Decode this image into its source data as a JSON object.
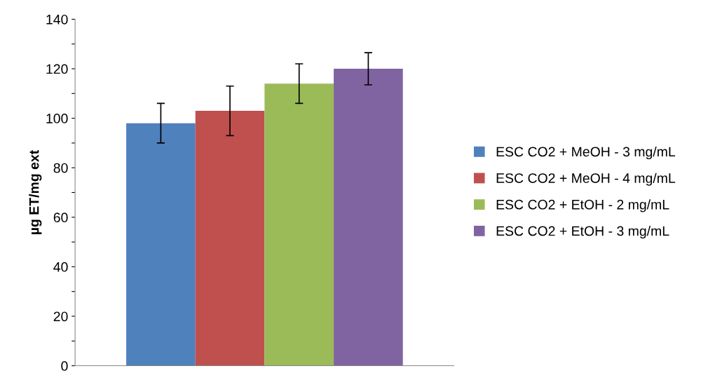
{
  "chart_data": {
    "type": "bar",
    "ylabel": "µg ET/mg ext",
    "categories": [
      null
    ],
    "series": [
      {
        "name": "ESC CO2 + MeOH - 3 mg/mL",
        "color": "#4f81bd",
        "values": [
          98
        ],
        "errors": [
          8
        ]
      },
      {
        "name": "ESC CO2 + MeOH - 4 mg/mL",
        "color": "#c0504d",
        "values": [
          103
        ],
        "errors": [
          10
        ]
      },
      {
        "name": "ESC CO2 + EtOH - 2 mg/mL",
        "color": "#9bbb59",
        "values": [
          114
        ],
        "errors": [
          8
        ]
      },
      {
        "name": "ESC CO2 + EtOH - 3 mg/mL",
        "color": "#8064a2",
        "values": [
          120
        ],
        "errors": [
          6.5
        ]
      }
    ],
    "ylim": [
      0,
      140
    ],
    "yticks": [
      0,
      {
        "value": 10,
        "label": null
      },
      20,
      {
        "value": 30,
        "label": null
      },
      40,
      {
        "value": 50,
        "label": null
      },
      60,
      {
        "value": 70,
        "label": null
      },
      80,
      {
        "value": 90,
        "label": null
      },
      100,
      {
        "value": 110,
        "label": null
      },
      120,
      {
        "value": 130,
        "label": null
      },
      140
    ],
    "grid": false,
    "legend": "right"
  }
}
